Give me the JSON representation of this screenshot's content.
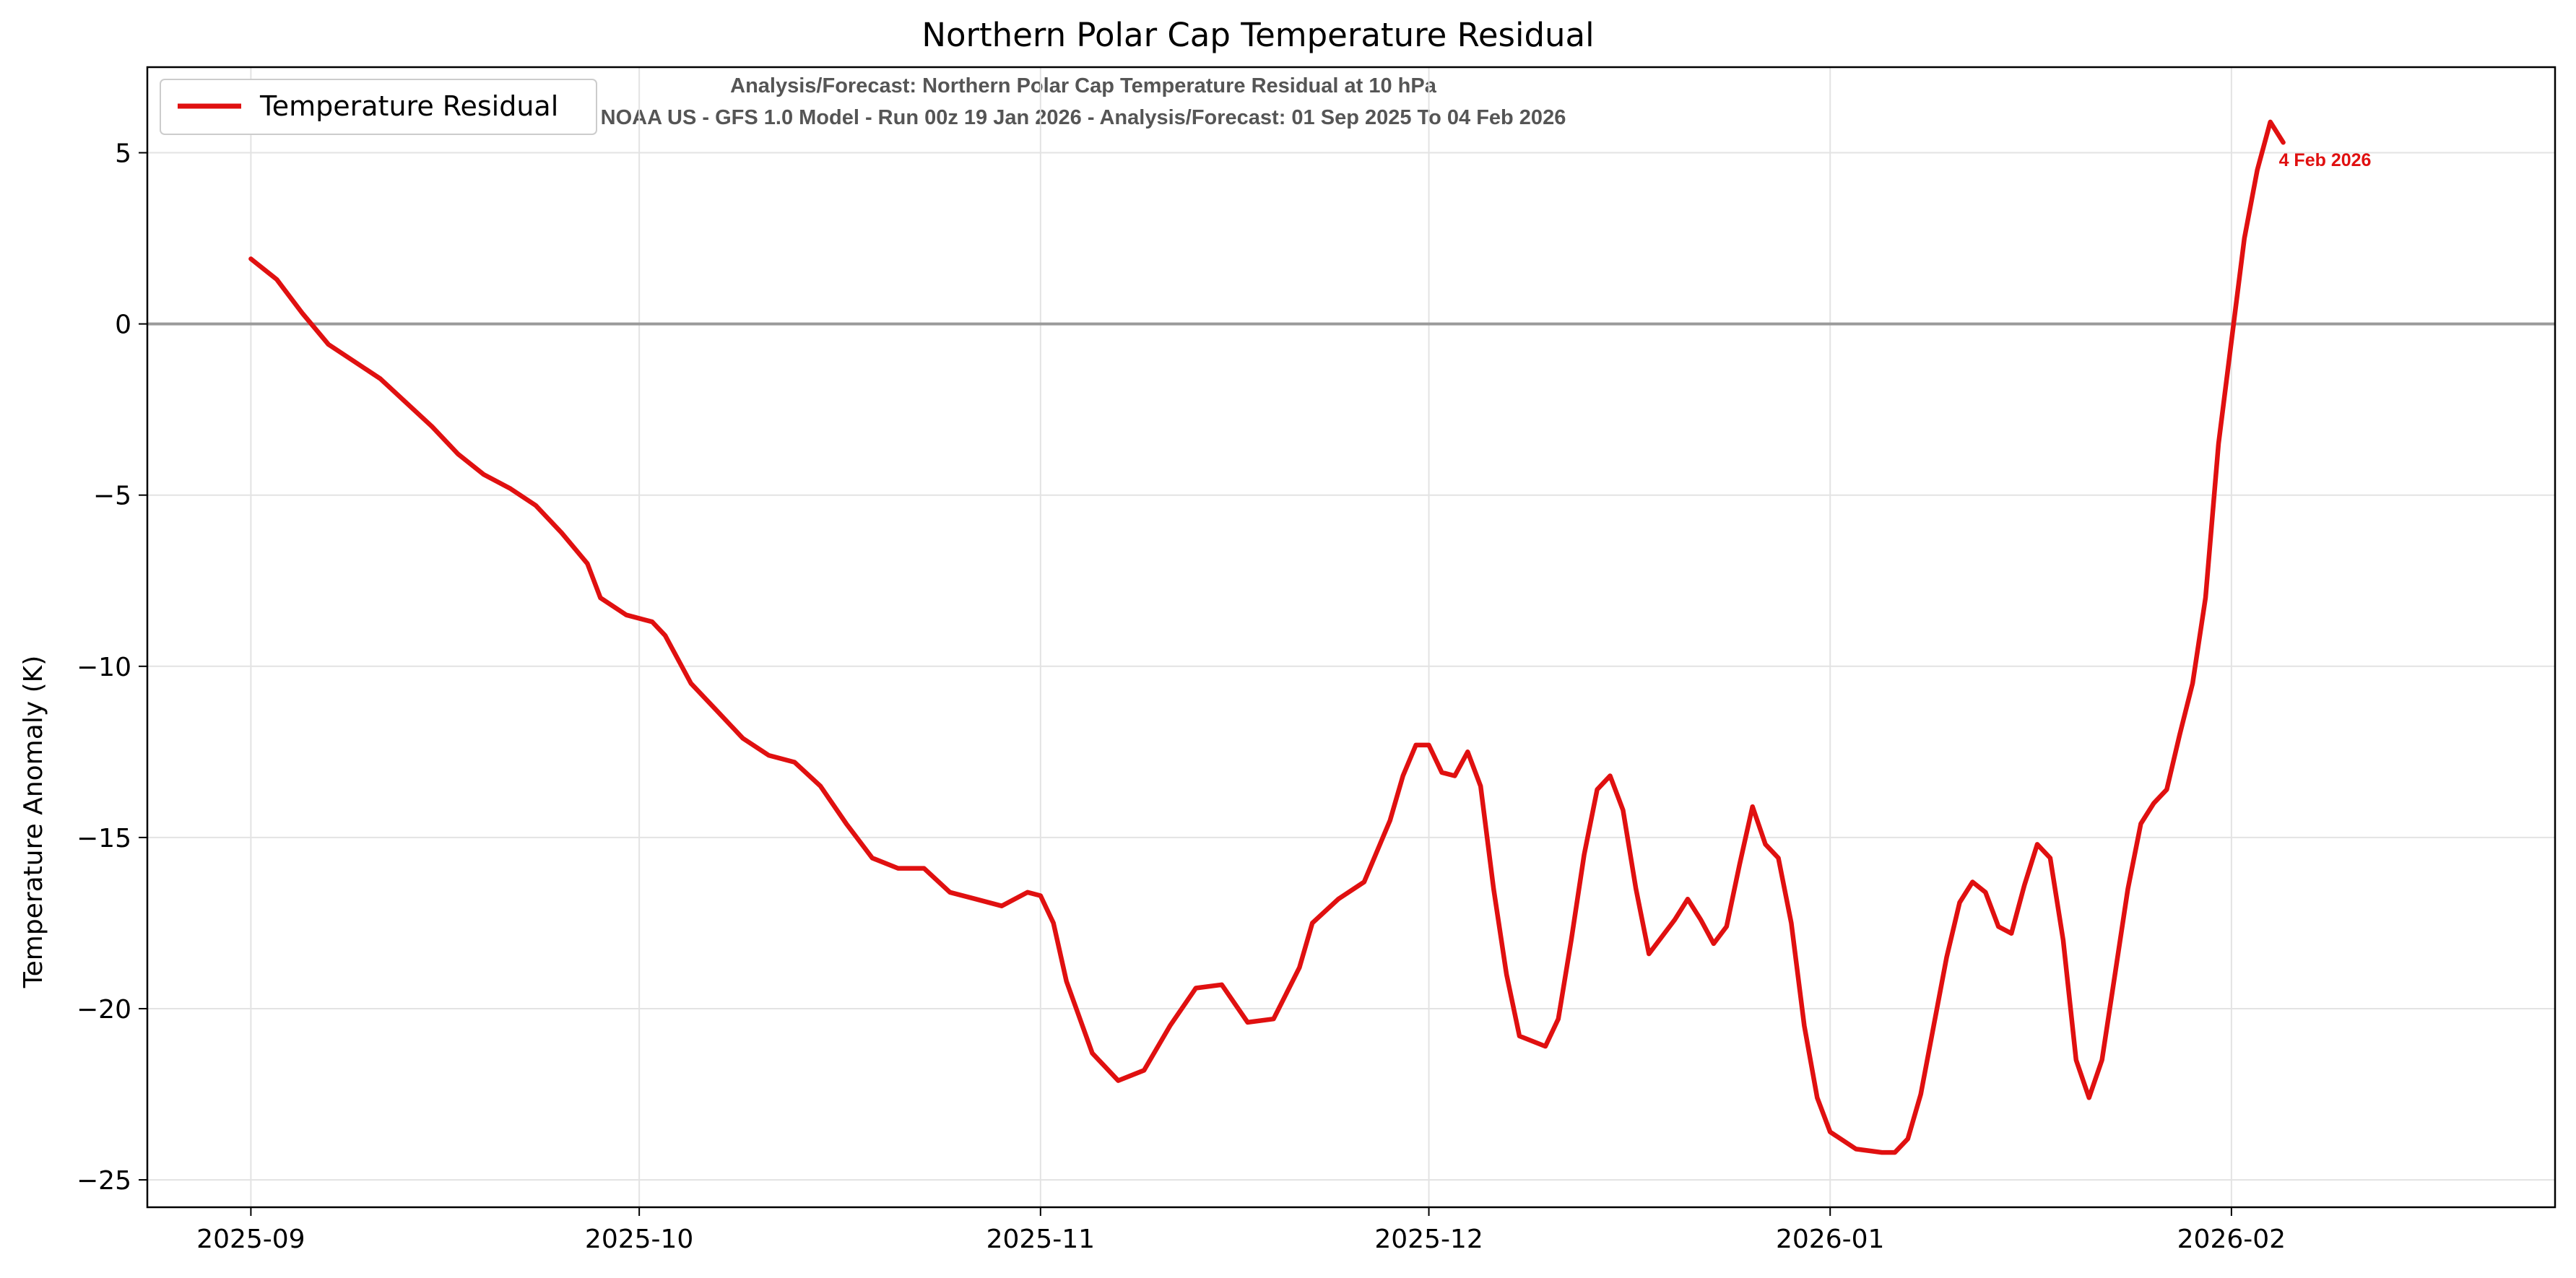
{
  "chart_data": {
    "type": "line",
    "title": "Northern Polar Cap Temperature Residual",
    "subtitle_lines": [
      "Analysis/Forecast: Northern Polar Cap Temperature Residual at 10 hPa",
      "NOAA US - GFS 1.0 Model - Run 00z 19 Jan 2026 - Analysis/Forecast: 01 Sep 2025 To 04 Feb 2026"
    ],
    "xlabel": "",
    "ylabel": "Temperature Anomaly (K)",
    "xlim": [
      "2025-08-24",
      "2026-02-26"
    ],
    "ylim": [
      -25.8,
      7.5
    ],
    "x_ticks": [
      "2025-09-01",
      "2025-10-01",
      "2025-11-01",
      "2025-12-01",
      "2026-01-01",
      "2026-02-01"
    ],
    "x_tick_labels": [
      "2025-09",
      "2025-10",
      "2025-11",
      "2025-12",
      "2026-01",
      "2026-02"
    ],
    "y_ticks": [
      5,
      0,
      -5,
      -10,
      -15,
      -20,
      -25
    ],
    "y_tick_labels": [
      "5",
      "0",
      "−5",
      "−10",
      "−15",
      "−20",
      "−25"
    ],
    "grid": true,
    "zero_line": true,
    "legend_position": "top-left",
    "series": [
      {
        "name": "Temperature Residual",
        "color": "#e01010",
        "points": [
          [
            "2025-09-01",
            1.9
          ],
          [
            "2025-09-03",
            1.3
          ],
          [
            "2025-09-05",
            0.3
          ],
          [
            "2025-09-07",
            -0.6
          ],
          [
            "2025-09-09",
            -1.1
          ],
          [
            "2025-09-11",
            -1.6
          ],
          [
            "2025-09-13",
            -2.3
          ],
          [
            "2025-09-15",
            -3.0
          ],
          [
            "2025-09-17",
            -3.8
          ],
          [
            "2025-09-19",
            -4.4
          ],
          [
            "2025-09-21",
            -4.8
          ],
          [
            "2025-09-23",
            -5.3
          ],
          [
            "2025-09-25",
            -6.1
          ],
          [
            "2025-09-27",
            -7.0
          ],
          [
            "2025-09-28",
            -8.0
          ],
          [
            "2025-09-30",
            -8.5
          ],
          [
            "2025-10-02",
            -8.7
          ],
          [
            "2025-10-03",
            -9.1
          ],
          [
            "2025-10-05",
            -10.5
          ],
          [
            "2025-10-07",
            -11.3
          ],
          [
            "2025-10-09",
            -12.1
          ],
          [
            "2025-10-11",
            -12.6
          ],
          [
            "2025-10-13",
            -12.8
          ],
          [
            "2025-10-15",
            -13.5
          ],
          [
            "2025-10-17",
            -14.6
          ],
          [
            "2025-10-19",
            -15.6
          ],
          [
            "2025-10-21",
            -15.9
          ],
          [
            "2025-10-23",
            -15.9
          ],
          [
            "2025-10-25",
            -16.6
          ],
          [
            "2025-10-27",
            -16.8
          ],
          [
            "2025-10-29",
            -17.0
          ],
          [
            "2025-10-31",
            -16.6
          ],
          [
            "2025-11-01",
            -16.7
          ],
          [
            "2025-11-02",
            -17.5
          ],
          [
            "2025-11-03",
            -19.2
          ],
          [
            "2025-11-05",
            -21.3
          ],
          [
            "2025-11-07",
            -22.1
          ],
          [
            "2025-11-09",
            -21.8
          ],
          [
            "2025-11-11",
            -20.5
          ],
          [
            "2025-11-13",
            -19.4
          ],
          [
            "2025-11-15",
            -19.3
          ],
          [
            "2025-11-17",
            -20.4
          ],
          [
            "2025-11-19",
            -20.3
          ],
          [
            "2025-11-21",
            -18.8
          ],
          [
            "2025-11-22",
            -17.5
          ],
          [
            "2025-11-24",
            -16.8
          ],
          [
            "2025-11-26",
            -16.3
          ],
          [
            "2025-11-28",
            -14.5
          ],
          [
            "2025-11-29",
            -13.2
          ],
          [
            "2025-11-30",
            -12.3
          ],
          [
            "2025-12-01",
            -12.3
          ],
          [
            "2025-12-02",
            -13.1
          ],
          [
            "2025-12-03",
            -13.2
          ],
          [
            "2025-12-04",
            -12.5
          ],
          [
            "2025-12-05",
            -13.5
          ],
          [
            "2025-12-06",
            -16.5
          ],
          [
            "2025-12-07",
            -19.0
          ],
          [
            "2025-12-08",
            -20.8
          ],
          [
            "2025-12-10",
            -21.1
          ],
          [
            "2025-12-11",
            -20.3
          ],
          [
            "2025-12-12",
            -18.0
          ],
          [
            "2025-12-13",
            -15.5
          ],
          [
            "2025-12-14",
            -13.6
          ],
          [
            "2025-12-15",
            -13.2
          ],
          [
            "2025-12-16",
            -14.2
          ],
          [
            "2025-12-17",
            -16.5
          ],
          [
            "2025-12-18",
            -18.4
          ],
          [
            "2025-12-20",
            -17.4
          ],
          [
            "2025-12-21",
            -16.8
          ],
          [
            "2025-12-22",
            -17.4
          ],
          [
            "2025-12-23",
            -18.1
          ],
          [
            "2025-12-24",
            -17.6
          ],
          [
            "2025-12-25",
            -15.8
          ],
          [
            "2025-12-26",
            -14.1
          ],
          [
            "2025-12-27",
            -15.2
          ],
          [
            "2025-12-28",
            -15.6
          ],
          [
            "2025-12-29",
            -17.5
          ],
          [
            "2025-12-30",
            -20.5
          ],
          [
            "2025-12-31",
            -22.6
          ],
          [
            "2026-01-01",
            -23.6
          ],
          [
            "2026-01-03",
            -24.1
          ],
          [
            "2026-01-05",
            -24.2
          ],
          [
            "2026-01-06",
            -24.2
          ],
          [
            "2026-01-07",
            -23.8
          ],
          [
            "2026-01-08",
            -22.5
          ],
          [
            "2026-01-09",
            -20.5
          ],
          [
            "2026-01-10",
            -18.5
          ],
          [
            "2026-01-11",
            -16.9
          ],
          [
            "2026-01-12",
            -16.3
          ],
          [
            "2026-01-13",
            -16.6
          ],
          [
            "2026-01-14",
            -17.6
          ],
          [
            "2026-01-15",
            -17.8
          ],
          [
            "2026-01-16",
            -16.4
          ],
          [
            "2026-01-17",
            -15.2
          ],
          [
            "2026-01-18",
            -15.6
          ],
          [
            "2026-01-19",
            -18.0
          ],
          [
            "2026-01-20",
            -21.5
          ],
          [
            "2026-01-21",
            -22.6
          ],
          [
            "2026-01-22",
            -21.5
          ],
          [
            "2026-01-23",
            -19.0
          ],
          [
            "2026-01-24",
            -16.5
          ],
          [
            "2026-01-25",
            -14.6
          ],
          [
            "2026-01-26",
            -14.0
          ],
          [
            "2026-01-27",
            -13.6
          ],
          [
            "2026-01-28",
            -12.0
          ],
          [
            "2026-01-29",
            -10.5
          ],
          [
            "2026-01-30",
            -8.0
          ],
          [
            "2026-01-31",
            -3.5
          ],
          [
            "2026-02-01",
            -0.5
          ],
          [
            "2026-02-02",
            2.5
          ],
          [
            "2026-02-03",
            4.5
          ],
          [
            "2026-02-04",
            5.9
          ],
          [
            "2026-02-05",
            5.3
          ]
        ]
      }
    ],
    "annotations": [
      {
        "text": "4 Feb 2026",
        "x": "2026-02-05",
        "y": 4.8,
        "color": "#e01010"
      }
    ]
  }
}
